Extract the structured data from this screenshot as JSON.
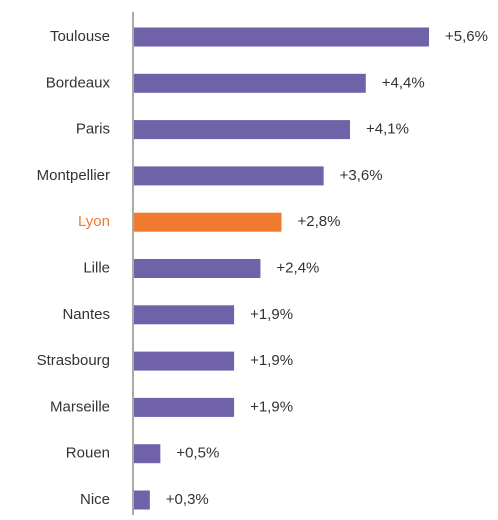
{
  "chart_data": {
    "type": "bar",
    "orientation": "horizontal",
    "categories": [
      "Toulouse",
      "Bordeaux",
      "Paris",
      "Montpellier",
      "Lyon",
      "Lille",
      "Nantes",
      "Strasbourg",
      "Marseille",
      "Rouen",
      "Nice"
    ],
    "values": [
      5.6,
      4.4,
      4.1,
      3.6,
      2.8,
      2.4,
      1.9,
      1.9,
      1.9,
      0.5,
      0.3
    ],
    "value_labels": [
      "+5,6%",
      "+4,4%",
      "+4,1%",
      "+3,6%",
      "+2,8%",
      "+2,4%",
      "+1,9%",
      "+1,9%",
      "+1,9%",
      "+0,5%",
      "+0,3%"
    ],
    "colors": [
      "#6f62a8",
      "#6f62a8",
      "#6f62a8",
      "#6f62a8",
      "#f07a30",
      "#6f62a8",
      "#6f62a8",
      "#6f62a8",
      "#6f62a8",
      "#6f62a8",
      "#6f62a8"
    ]
  }
}
